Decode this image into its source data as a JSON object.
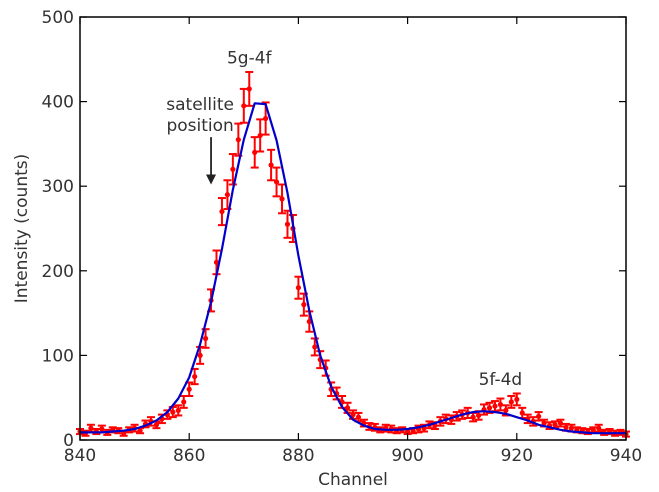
{
  "chart_data": {
    "type": "scatter",
    "title": "",
    "xlabel": "Channel",
    "ylabel": "Intensity (counts)",
    "xlim": [
      840,
      940
    ],
    "ylim": [
      0,
      500
    ],
    "xticks": [
      840,
      860,
      880,
      900,
      920,
      940
    ],
    "yticks": [
      0,
      100,
      200,
      300,
      400,
      500
    ],
    "grid": false,
    "legend": "none",
    "colors": {
      "points": "#ff0000",
      "fit": "#0000cc",
      "axes": "#000000",
      "annotation": "#333333"
    },
    "series": [
      {
        "kind": "points-with-errorbars",
        "x": [
          840,
          841,
          842,
          843,
          844,
          845,
          846,
          847,
          848,
          849,
          850,
          851,
          852,
          853,
          854,
          855,
          856,
          857,
          858,
          859,
          860,
          861,
          862,
          863,
          864,
          865,
          866,
          867,
          868,
          869,
          870,
          871,
          872,
          873,
          874,
          875,
          876,
          877,
          878,
          879,
          880,
          881,
          882,
          883,
          884,
          885,
          886,
          887,
          888,
          889,
          890,
          891,
          892,
          893,
          894,
          895,
          896,
          897,
          898,
          899,
          900,
          901,
          902,
          903,
          904,
          905,
          906,
          907,
          908,
          909,
          910,
          911,
          912,
          913,
          914,
          915,
          916,
          917,
          918,
          919,
          920,
          921,
          922,
          923,
          924,
          925,
          926,
          927,
          928,
          929,
          930,
          931,
          932,
          933,
          934,
          935,
          936,
          937,
          938,
          939,
          940
        ],
        "y": [
          10,
          8,
          14,
          10,
          13,
          9,
          12,
          11,
          8,
          12,
          14,
          11,
          19,
          22,
          18,
          25,
          30,
          33,
          35,
          45,
          60,
          75,
          100,
          120,
          165,
          210,
          270,
          290,
          320,
          355,
          395,
          415,
          340,
          360,
          380,
          325,
          305,
          285,
          255,
          250,
          180,
          160,
          140,
          110,
          95,
          85,
          60,
          55,
          45,
          38,
          30,
          27,
          20,
          16,
          15,
          12,
          14,
          13,
          11,
          12,
          10,
          11,
          13,
          14,
          18,
          17,
          22,
          25,
          24,
          28,
          30,
          32,
          27,
          29,
          36,
          38,
          40,
          42,
          35,
          45,
          48,
          32,
          25,
          22,
          28,
          20,
          17,
          18,
          20,
          15,
          14,
          12,
          11,
          10,
          12,
          14,
          9,
          10,
          8,
          9,
          7
        ],
        "yerr": [
          3,
          3,
          4,
          3,
          4,
          3,
          3,
          3,
          3,
          3,
          4,
          3,
          4,
          5,
          4,
          5,
          5,
          6,
          6,
          7,
          8,
          9,
          10,
          11,
          13,
          14,
          16,
          17,
          18,
          19,
          20,
          20,
          18,
          19,
          19,
          18,
          17,
          17,
          16,
          16,
          13,
          13,
          12,
          10,
          10,
          9,
          8,
          7,
          7,
          6,
          5,
          5,
          4,
          4,
          4,
          3,
          4,
          4,
          3,
          3,
          3,
          3,
          4,
          4,
          4,
          4,
          5,
          5,
          5,
          5,
          5,
          6,
          5,
          5,
          6,
          6,
          6,
          7,
          6,
          7,
          7,
          6,
          5,
          5,
          5,
          4,
          4,
          4,
          4,
          4,
          4,
          3,
          3,
          3,
          3,
          4,
          3,
          3,
          3,
          3,
          3
        ]
      },
      {
        "kind": "fit-line",
        "x": [
          840,
          842,
          844,
          846,
          848,
          850,
          852,
          854,
          856,
          858,
          860,
          862,
          864,
          866,
          868,
          870,
          872,
          874,
          876,
          878,
          880,
          882,
          884,
          886,
          888,
          890,
          892,
          894,
          896,
          898,
          900,
          902,
          904,
          906,
          908,
          910,
          912,
          914,
          916,
          918,
          920,
          922,
          924,
          926,
          928,
          930,
          932,
          934,
          936,
          938,
          940
        ],
        "y": [
          9,
          9,
          9,
          10,
          11,
          13,
          17,
          23,
          33,
          49,
          74,
          113,
          163,
          226,
          296,
          355,
          398,
          397,
          354,
          292,
          218,
          153,
          100,
          63,
          39,
          24,
          17,
          13,
          12,
          12,
          13,
          15,
          18,
          22,
          26,
          30,
          33,
          34,
          33,
          31,
          27,
          23,
          18,
          15,
          12,
          10,
          9,
          8,
          8,
          8,
          8
        ]
      }
    ],
    "annotations": [
      {
        "text": "5g-4f",
        "x": 871,
        "y": 445
      },
      {
        "text": "satellite",
        "x": 862,
        "y": 390
      },
      {
        "text": "position",
        "x": 862,
        "y": 365
      },
      {
        "text": "5f-4d",
        "x": 917,
        "y": 65
      }
    ],
    "arrow": {
      "x": 864,
      "y_from": 358,
      "y_to": 302
    }
  }
}
